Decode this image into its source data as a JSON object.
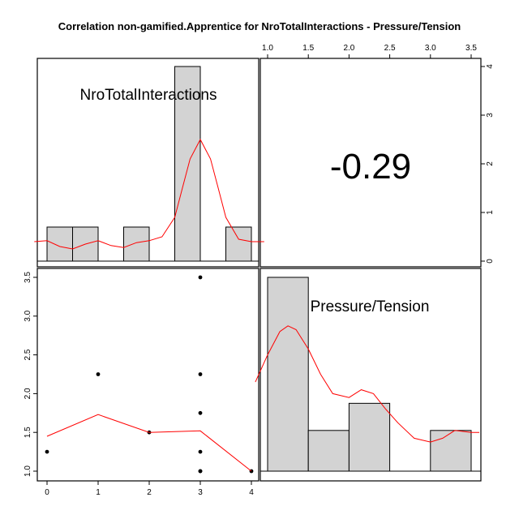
{
  "chart_data": {
    "type": "scatter-matrix",
    "title": "Correlation non-gamified.Apprentice for NroTotalInteractions - Pressure/Tension",
    "variables": [
      "NroTotalInteractions",
      "Pressure/Tension"
    ],
    "correlation": "-0.29",
    "x_ticks": [
      "0",
      "1",
      "2",
      "3",
      "4"
    ],
    "y_ticks": [
      "1.0",
      "1.5",
      "2.0",
      "2.5",
      "3.0",
      "3.5"
    ],
    "top_ticks": [
      "1.0",
      "1.5",
      "2.0",
      "2.5",
      "3.0",
      "3.5"
    ],
    "right_ticks": [
      "0",
      "1",
      "2",
      "3",
      "4"
    ],
    "hist_x": {
      "bins": [
        [
          0,
          0.5
        ],
        [
          0.5,
          1
        ],
        [
          1.5,
          2
        ],
        [
          2.5,
          3
        ],
        [
          3.5,
          4
        ]
      ],
      "counts": [
        0.7,
        0.7,
        0.7,
        4,
        0.7
      ]
    },
    "hist_y": {
      "bins": [
        [
          1,
          1.5
        ],
        [
          1.5,
          2
        ],
        [
          2,
          2.5
        ],
        [
          3,
          3.5
        ]
      ],
      "heights": [
        1,
        0.21,
        0.35,
        0.21
      ]
    },
    "scatter": {
      "x": [
        0,
        1,
        2,
        3,
        3,
        3,
        3,
        3,
        3,
        4
      ],
      "y": [
        1.25,
        2.25,
        1.5,
        3.5,
        2.25,
        1.75,
        1.25,
        1.0,
        1.0,
        1.0
      ]
    },
    "smooth": {
      "x": [
        0,
        1,
        2,
        3,
        4
      ],
      "y": [
        1.45,
        1.73,
        1.5,
        1.52,
        1.0
      ]
    },
    "density_x": {
      "x": [
        -0.25,
        0,
        0.25,
        0.5,
        0.75,
        1,
        1.25,
        1.5,
        1.75,
        2,
        2.25,
        2.5,
        2.65,
        2.8,
        3,
        3.2,
        3.35,
        3.5,
        3.75,
        4,
        4.25
      ],
      "y": [
        0.4,
        0.42,
        0.3,
        0.25,
        0.35,
        0.42,
        0.32,
        0.28,
        0.38,
        0.42,
        0.5,
        0.9,
        1.5,
        2.1,
        2.5,
        2.1,
        1.5,
        0.9,
        0.45,
        0.4,
        0.4
      ]
    },
    "density_y": {
      "x": [
        0.85,
        1,
        1.15,
        1.25,
        1.35,
        1.5,
        1.65,
        1.8,
        2.0,
        2.15,
        2.3,
        2.45,
        2.6,
        2.8,
        3.0,
        3.15,
        3.3,
        3.5,
        3.6
      ],
      "y": [
        0.46,
        0.6,
        0.72,
        0.75,
        0.73,
        0.63,
        0.5,
        0.4,
        0.38,
        0.42,
        0.4,
        0.32,
        0.25,
        0.17,
        0.15,
        0.17,
        0.21,
        0.2,
        0.2
      ]
    }
  }
}
